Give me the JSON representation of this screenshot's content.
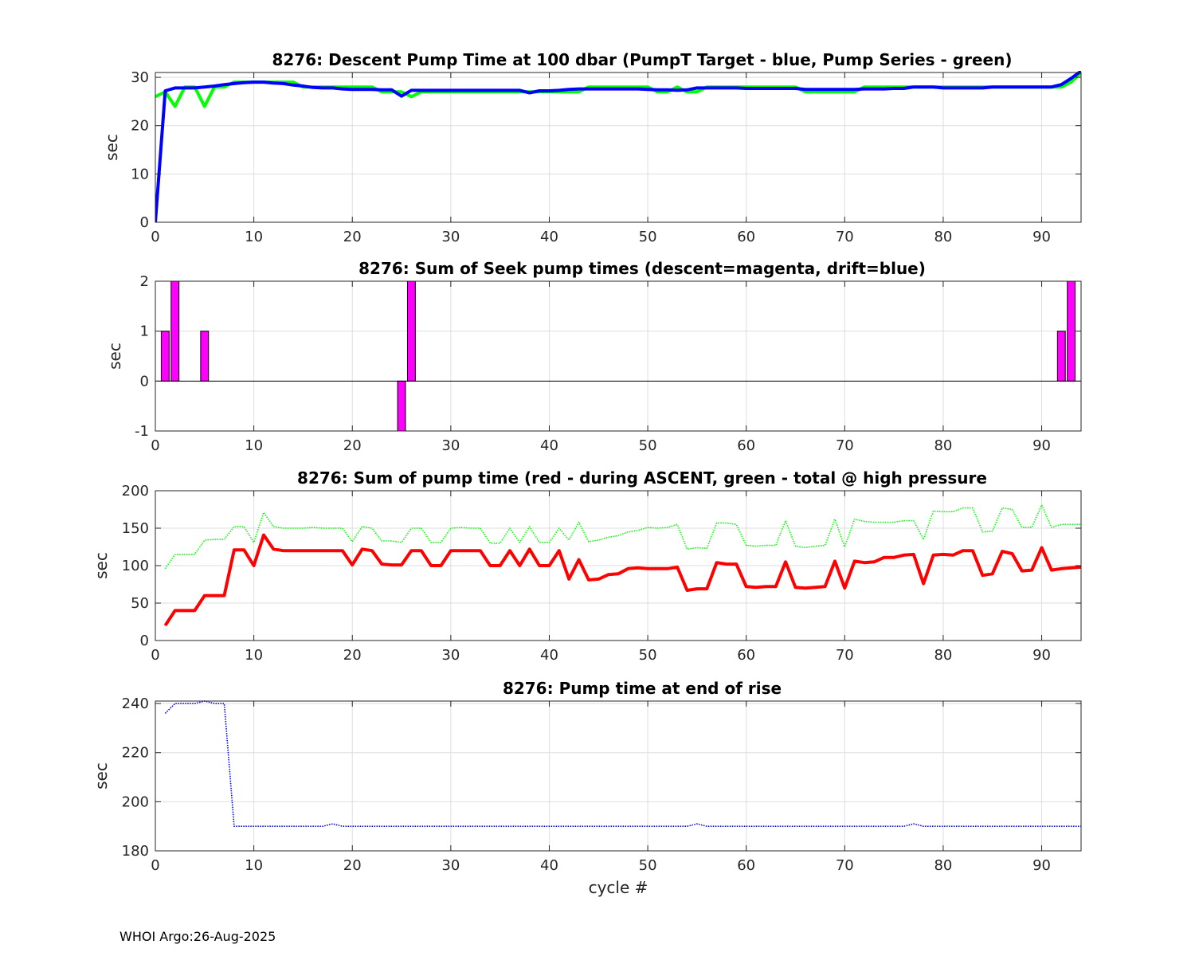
{
  "footer": "WHOI Argo:26-Aug-2025",
  "colors": {
    "grid": "#dedede",
    "axis": "#262626",
    "blue": "#0000ff",
    "green": "#00ff00",
    "magenta": "#ff00ff",
    "red": "#ff0000"
  },
  "chart_data": [
    {
      "type": "line",
      "title": "8276: Descent Pump Time at 100 dbar (PumpT Target - blue, Pump Series - green)",
      "xlabel": "",
      "ylabel": "sec",
      "xlim": [
        0,
        94
      ],
      "ylim": [
        0,
        31
      ],
      "xticks": [
        0,
        10,
        20,
        30,
        40,
        50,
        60,
        70,
        80,
        90
      ],
      "yticks": [
        0,
        10,
        20,
        30
      ],
      "grid": true,
      "series": [
        {
          "color": "green",
          "style": "solid",
          "x": [
            0,
            1,
            2,
            3,
            4,
            5,
            6,
            7,
            8,
            9,
            10,
            11,
            12,
            13,
            14,
            15,
            16,
            17,
            18,
            19,
            20,
            21,
            22,
            23,
            24,
            25,
            26,
            27,
            28,
            29,
            30,
            31,
            32,
            33,
            34,
            35,
            36,
            37,
            38,
            39,
            40,
            41,
            42,
            43,
            44,
            45,
            46,
            47,
            48,
            49,
            50,
            51,
            52,
            53,
            54,
            55,
            56,
            57,
            58,
            59,
            60,
            61,
            62,
            63,
            64,
            65,
            66,
            67,
            68,
            69,
            70,
            71,
            72,
            73,
            74,
            75,
            76,
            77,
            78,
            79,
            80,
            81,
            82,
            83,
            84,
            85,
            86,
            87,
            88,
            89,
            90,
            91,
            92,
            93,
            94
          ],
          "y": [
            26,
            27,
            24,
            28,
            28,
            24,
            28,
            28,
            29,
            29,
            29,
            29,
            29,
            29,
            29,
            28,
            28,
            28,
            28,
            28,
            28,
            28,
            28,
            27,
            27,
            27,
            26,
            27,
            27,
            27,
            27,
            27,
            27,
            27,
            27,
            27,
            27,
            27,
            27,
            27,
            27,
            27,
            27,
            27,
            28,
            28,
            28,
            28,
            28,
            28,
            28,
            27,
            27,
            28,
            27,
            27,
            28,
            28,
            28,
            28,
            28,
            28,
            28,
            28,
            28,
            28,
            27,
            27,
            27,
            27,
            27,
            27,
            28,
            28,
            28,
            28,
            28,
            28,
            28,
            28,
            28,
            28,
            28,
            28,
            28,
            28,
            28,
            28,
            28,
            28,
            28,
            28,
            28,
            29,
            31
          ]
        },
        {
          "color": "blue",
          "style": "solid",
          "x": [
            0,
            1,
            2,
            3,
            4,
            5,
            6,
            7,
            8,
            9,
            10,
            11,
            12,
            13,
            14,
            15,
            16,
            17,
            18,
            19,
            20,
            21,
            22,
            23,
            24,
            25,
            26,
            27,
            28,
            29,
            30,
            31,
            32,
            33,
            34,
            35,
            36,
            37,
            38,
            39,
            40,
            41,
            42,
            43,
            44,
            45,
            46,
            47,
            48,
            49,
            50,
            51,
            52,
            53,
            54,
            55,
            56,
            57,
            58,
            59,
            60,
            61,
            62,
            63,
            64,
            65,
            66,
            67,
            68,
            69,
            70,
            71,
            72,
            73,
            74,
            75,
            76,
            77,
            78,
            79,
            80,
            81,
            82,
            83,
            84,
            85,
            86,
            87,
            88,
            89,
            90,
            91,
            92,
            93,
            94
          ],
          "y": [
            0,
            27.2,
            27.8,
            27.8,
            27.8,
            28,
            28.2,
            28.5,
            28.7,
            28.9,
            29,
            29,
            28.8,
            28.7,
            28.4,
            28.2,
            27.9,
            27.8,
            27.8,
            27.6,
            27.5,
            27.5,
            27.5,
            27.4,
            27.4,
            26.1,
            27.3,
            27.3,
            27.3,
            27.3,
            27.3,
            27.3,
            27.3,
            27.3,
            27.3,
            27.3,
            27.3,
            27.3,
            26.8,
            27.2,
            27.2,
            27.3,
            27.5,
            27.6,
            27.6,
            27.6,
            27.6,
            27.6,
            27.6,
            27.6,
            27.5,
            27.4,
            27.4,
            27.3,
            27.4,
            27.8,
            27.8,
            27.8,
            27.8,
            27.8,
            27.7,
            27.7,
            27.7,
            27.7,
            27.7,
            27.7,
            27.5,
            27.5,
            27.5,
            27.5,
            27.5,
            27.5,
            27.6,
            27.6,
            27.6,
            27.7,
            27.7,
            28,
            28,
            28,
            27.8,
            27.8,
            27.8,
            27.8,
            27.8,
            28,
            28,
            28,
            28,
            28,
            28,
            28,
            28.5,
            29.8,
            31.3
          ]
        }
      ]
    },
    {
      "type": "bar",
      "title": "8276: Sum of Seek pump times (descent=magenta, drift=blue)",
      "xlabel": "",
      "ylabel": "sec",
      "xlim": [
        0,
        94
      ],
      "ylim": [
        -1,
        2
      ],
      "xticks": [
        0,
        10,
        20,
        30,
        40,
        50,
        60,
        70,
        80,
        90
      ],
      "yticks": [
        -1,
        0,
        1,
        2
      ],
      "grid": true,
      "series": [
        {
          "color": "magenta",
          "x": [
            1,
            2,
            5,
            25,
            26,
            92,
            93
          ],
          "values": [
            1,
            2,
            1,
            -1,
            2,
            1,
            2
          ]
        }
      ]
    },
    {
      "type": "line",
      "title": "8276: Sum of pump time (red - during ASCENT, green - total @ high pressure",
      "xlabel": "",
      "ylabel": "sec",
      "xlim": [
        0,
        94
      ],
      "ylim": [
        0,
        200
      ],
      "xticks": [
        0,
        10,
        20,
        30,
        40,
        50,
        60,
        70,
        80,
        90
      ],
      "yticks": [
        0,
        50,
        100,
        150,
        200
      ],
      "grid": true,
      "series": [
        {
          "color": "green",
          "style": "dotted",
          "x": [
            1,
            2,
            3,
            4,
            5,
            6,
            7,
            8,
            9,
            10,
            11,
            12,
            13,
            14,
            15,
            16,
            17,
            18,
            19,
            20,
            21,
            22,
            23,
            24,
            25,
            26,
            27,
            28,
            29,
            30,
            31,
            32,
            33,
            34,
            35,
            36,
            37,
            38,
            39,
            40,
            41,
            42,
            43,
            44,
            45,
            46,
            47,
            48,
            49,
            50,
            51,
            52,
            53,
            54,
            55,
            56,
            57,
            58,
            59,
            60,
            61,
            62,
            63,
            64,
            65,
            66,
            67,
            68,
            69,
            70,
            71,
            72,
            73,
            74,
            75,
            76,
            77,
            78,
            79,
            80,
            81,
            82,
            83,
            84,
            85,
            86,
            87,
            88,
            89,
            90,
            91,
            92,
            93,
            94
          ],
          "y": [
            96,
            115,
            115,
            115,
            134,
            135,
            135,
            152,
            152,
            131,
            171,
            152,
            150,
            150,
            150,
            151,
            150,
            150,
            150,
            132,
            152,
            150,
            133,
            133,
            131,
            150,
            150,
            131,
            131,
            150,
            151,
            150,
            150,
            130,
            130,
            150,
            131,
            152,
            131,
            131,
            150,
            134,
            158,
            132,
            134,
            138,
            140,
            145,
            147,
            151,
            150,
            151,
            155,
            122,
            124,
            123,
            157,
            157,
            155,
            127,
            126,
            127,
            127,
            160,
            126,
            124,
            126,
            127,
            162,
            125,
            162,
            159,
            158,
            158,
            158,
            160,
            160,
            135,
            173,
            172,
            172,
            177,
            177,
            145,
            146,
            177,
            175,
            151,
            151,
            181,
            151,
            155,
            155,
            155
          ]
        },
        {
          "color": "red",
          "style": "solid",
          "x": [
            1,
            2,
            3,
            4,
            5,
            6,
            7,
            8,
            9,
            10,
            11,
            12,
            13,
            14,
            15,
            16,
            17,
            18,
            19,
            20,
            21,
            22,
            23,
            24,
            25,
            26,
            27,
            28,
            29,
            30,
            31,
            32,
            33,
            34,
            35,
            36,
            37,
            38,
            39,
            40,
            41,
            42,
            43,
            44,
            45,
            46,
            47,
            48,
            49,
            50,
            51,
            52,
            53,
            54,
            55,
            56,
            57,
            58,
            59,
            60,
            61,
            62,
            63,
            64,
            65,
            66,
            67,
            68,
            69,
            70,
            71,
            72,
            73,
            74,
            75,
            76,
            77,
            78,
            79,
            80,
            81,
            82,
            83,
            84,
            85,
            86,
            87,
            88,
            89,
            90,
            91,
            92,
            93,
            94
          ],
          "y": [
            20,
            40,
            40,
            40,
            60,
            60,
            60,
            121,
            121,
            100,
            141,
            122,
            120,
            120,
            120,
            120,
            120,
            120,
            120,
            101,
            122,
            120,
            102,
            101,
            101,
            120,
            120,
            100,
            100,
            120,
            120,
            120,
            120,
            100,
            100,
            120,
            100,
            122,
            100,
            100,
            120,
            82,
            108,
            81,
            82,
            88,
            89,
            96,
            97,
            96,
            96,
            96,
            98,
            67,
            69,
            69,
            104,
            102,
            102,
            72,
            71,
            72,
            72,
            105,
            71,
            70,
            71,
            72,
            106,
            70,
            106,
            104,
            105,
            111,
            111,
            114,
            115,
            76,
            114,
            115,
            114,
            120,
            120,
            87,
            89,
            119,
            116,
            93,
            94,
            124,
            94,
            96,
            97,
            98
          ]
        }
      ]
    },
    {
      "type": "line",
      "title": "8276: Pump time at end of rise",
      "xlabel": "cycle #",
      "ylabel": "sec",
      "xlim": [
        0,
        94
      ],
      "ylim": [
        180,
        241
      ],
      "xticks": [
        0,
        10,
        20,
        30,
        40,
        50,
        60,
        70,
        80,
        90
      ],
      "yticks": [
        180,
        200,
        220,
        240
      ],
      "grid": true,
      "series": [
        {
          "color": "blue",
          "style": "dotted",
          "x": [
            1,
            2,
            3,
            4,
            5,
            6,
            7,
            8,
            9,
            10,
            11,
            12,
            13,
            14,
            15,
            16,
            17,
            18,
            19,
            20,
            21,
            22,
            23,
            24,
            25,
            26,
            27,
            28,
            29,
            30,
            31,
            32,
            33,
            34,
            35,
            36,
            37,
            38,
            39,
            40,
            41,
            42,
            43,
            44,
            45,
            46,
            47,
            48,
            49,
            50,
            51,
            52,
            53,
            54,
            55,
            56,
            57,
            58,
            59,
            60,
            61,
            62,
            63,
            64,
            65,
            66,
            67,
            68,
            69,
            70,
            71,
            72,
            73,
            74,
            75,
            76,
            77,
            78,
            79,
            80,
            81,
            82,
            83,
            84,
            85,
            86,
            87,
            88,
            89,
            90,
            91,
            92,
            93,
            94
          ],
          "y": [
            236,
            240,
            240,
            240,
            241,
            240,
            240,
            190,
            190,
            190,
            190,
            190,
            190,
            190,
            190,
            190,
            190,
            191,
            190,
            190,
            190,
            190,
            190,
            190,
            190,
            190,
            190,
            190,
            190,
            190,
            190,
            190,
            190,
            190,
            190,
            190,
            190,
            190,
            190,
            190,
            190,
            190,
            190,
            190,
            190,
            190,
            190,
            190,
            190,
            190,
            190,
            190,
            190,
            190,
            191,
            190,
            190,
            190,
            190,
            190,
            190,
            190,
            190,
            190,
            190,
            190,
            190,
            190,
            190,
            190,
            190,
            190,
            190,
            190,
            190,
            190,
            191,
            190,
            190,
            190,
            190,
            190,
            190,
            190,
            190,
            190,
            190,
            190,
            190,
            190,
            190,
            190,
            190,
            190
          ]
        }
      ]
    }
  ]
}
